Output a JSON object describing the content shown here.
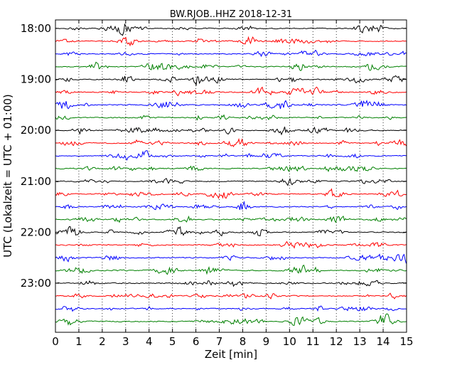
{
  "chart_data": {
    "type": "line",
    "title": "BW.RJOB..HHZ 2018-12-31",
    "xlabel": "Zeit  [min]",
    "ylabel": "UTC (Lokalzeit = UTC + 01:00)",
    "xlim": [
      0,
      15
    ],
    "x_ticks": [
      0,
      1,
      2,
      3,
      4,
      5,
      6,
      7,
      8,
      9,
      10,
      11,
      12,
      13,
      14,
      15
    ],
    "y_tick_labels": [
      "18:00",
      "19:00",
      "20:00",
      "21:00",
      "22:00",
      "23:00"
    ],
    "traces_per_hour": 4,
    "trace_start_times": [
      "18:00",
      "18:15",
      "18:30",
      "18:45",
      "19:00",
      "19:15",
      "19:30",
      "19:45",
      "20:00",
      "20:15",
      "20:30",
      "20:45",
      "21:00",
      "21:15",
      "21:30",
      "21:45",
      "22:00",
      "22:15",
      "22:30",
      "22:45",
      "23:00",
      "23:15",
      "23:30",
      "23:45"
    ],
    "trace_colors": [
      "#000000",
      "#ff0000",
      "#0000ff",
      "#008000"
    ],
    "grid": "vertical dotted lines at each minute",
    "legend": "none"
  }
}
